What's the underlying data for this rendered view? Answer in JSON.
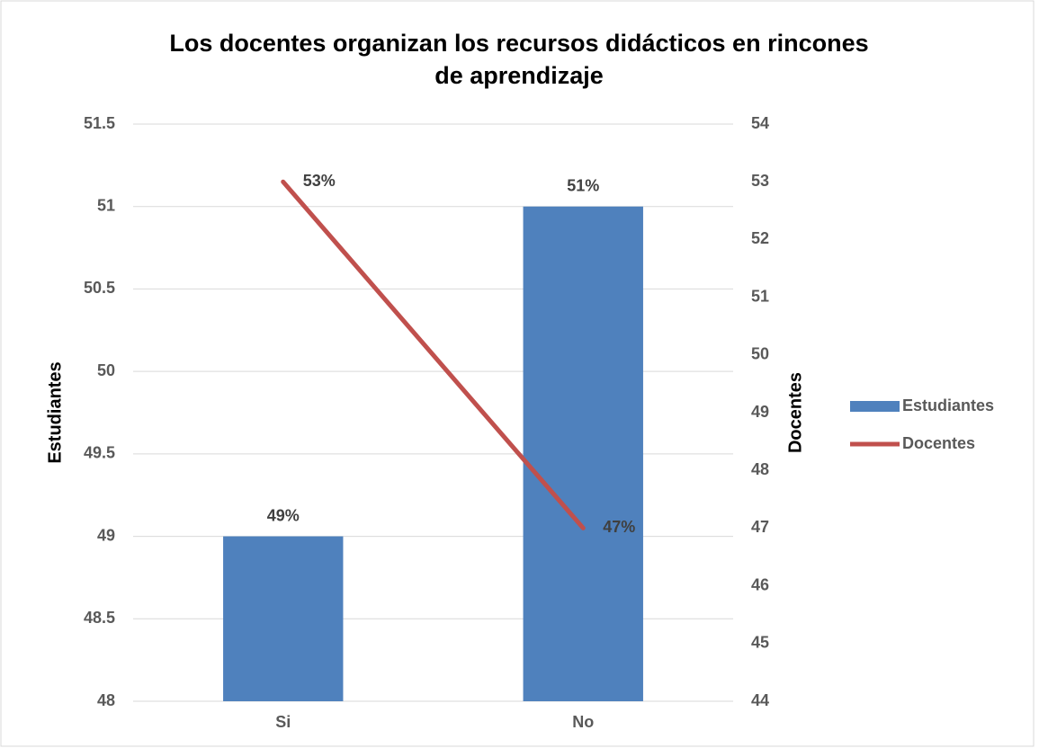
{
  "chart_data": {
    "type": "bar",
    "title": "Los docentes organizan los recursos didácticos en rincones de aprendizaje",
    "categories": [
      "Si",
      "No"
    ],
    "ylabel": "Estudiantes",
    "y2label": "Docentes",
    "ylim": [
      48,
      51.5
    ],
    "yticks": [
      48,
      48.5,
      49,
      49.5,
      50,
      50.5,
      51,
      51.5
    ],
    "y2lim": [
      44,
      54
    ],
    "y2ticks": [
      44,
      45,
      46,
      47,
      48,
      49,
      50,
      51,
      52,
      53,
      54
    ],
    "grid": true,
    "legend": "right",
    "series": [
      {
        "name": "Estudiantes",
        "type": "bar",
        "color": "#4f81bd",
        "values": [
          49,
          51
        ],
        "value_labels": [
          "49%",
          "51%"
        ]
      },
      {
        "name": "Docentes",
        "type": "line",
        "axis": "y2",
        "color": "#c0504d",
        "values": [
          53,
          47
        ],
        "value_labels": [
          "53%",
          "47%"
        ]
      }
    ]
  }
}
